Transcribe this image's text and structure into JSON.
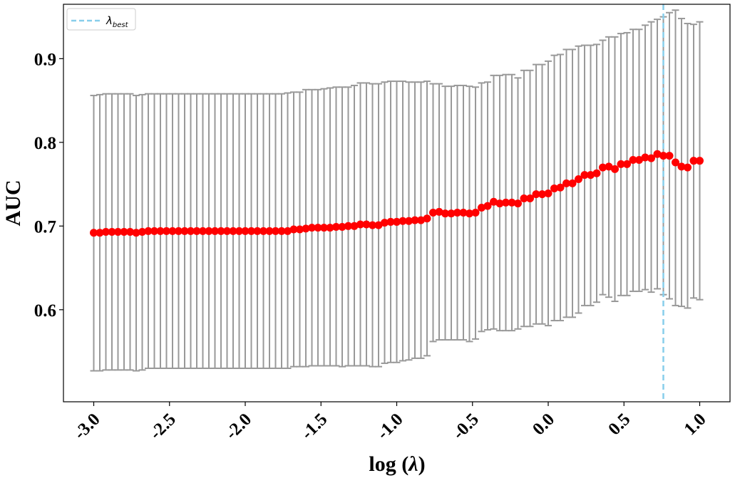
{
  "chart_data": {
    "type": "scatter",
    "xlabel_prefix": "log (",
    "xlabel_symbol": "λ",
    "xlabel_suffix": ")",
    "ylabel": "AUC",
    "xlim": [
      -3.2,
      1.2
    ],
    "ylim": [
      0.49,
      0.965
    ],
    "xticks": [
      -3.0,
      -2.5,
      -2.0,
      -1.5,
      -1.0,
      -0.5,
      0.0,
      0.5,
      1.0
    ],
    "xtick_labels": [
      "-3.0",
      "-2.5",
      "-2.0",
      "-1.5",
      "-1.0",
      "-0.5",
      "0.0",
      "0.5",
      "1.0"
    ],
    "yticks": [
      0.6,
      0.7,
      0.8,
      0.9
    ],
    "ytick_labels": [
      "0.6",
      "0.7",
      "0.8",
      "0.9"
    ],
    "grid": false,
    "legend_position": "top-left",
    "legend_symbol": "λ",
    "legend_subscript": "best",
    "best_lambda_log": 0.76,
    "colors": {
      "points": "#ff0000",
      "errorbars": "#999999",
      "best_line": "#87ceeb"
    },
    "series": [
      {
        "x": [
          -3.0,
          -2.96,
          -2.92,
          -2.88,
          -2.84,
          -2.8,
          -2.76,
          -2.72,
          -2.68,
          -2.64,
          -2.6,
          -2.56,
          -2.52,
          -2.48,
          -2.44,
          -2.4,
          -2.36,
          -2.32,
          -2.28,
          -2.24,
          -2.2,
          -2.16,
          -2.12,
          -2.08,
          -2.04,
          -2.0,
          -1.96,
          -1.92,
          -1.88,
          -1.84,
          -1.8,
          -1.76,
          -1.72,
          -1.68,
          -1.64,
          -1.6,
          -1.56,
          -1.52,
          -1.48,
          -1.44,
          -1.4,
          -1.36,
          -1.32,
          -1.28,
          -1.24,
          -1.2,
          -1.16,
          -1.12,
          -1.08,
          -1.04,
          -1.0,
          -0.96,
          -0.92,
          -0.88,
          -0.84,
          -0.8,
          -0.76,
          -0.72,
          -0.68,
          -0.64,
          -0.6,
          -0.56,
          -0.52,
          -0.48,
          -0.44,
          -0.4,
          -0.36,
          -0.32,
          -0.28,
          -0.24,
          -0.2,
          -0.16,
          -0.12,
          -0.08,
          -0.04,
          0.0,
          0.04,
          0.08,
          0.12,
          0.16,
          0.2,
          0.24,
          0.28,
          0.32,
          0.36,
          0.4,
          0.44,
          0.48,
          0.52,
          0.56,
          0.6,
          0.64,
          0.68,
          0.72,
          0.76,
          0.8,
          0.84,
          0.88,
          0.92,
          0.96,
          1.0
        ],
        "y": [
          0.692,
          0.692,
          0.693,
          0.693,
          0.693,
          0.693,
          0.693,
          0.692,
          0.693,
          0.694,
          0.694,
          0.694,
          0.694,
          0.694,
          0.694,
          0.694,
          0.694,
          0.694,
          0.694,
          0.694,
          0.694,
          0.694,
          0.694,
          0.694,
          0.694,
          0.694,
          0.694,
          0.694,
          0.694,
          0.694,
          0.694,
          0.694,
          0.694,
          0.696,
          0.696,
          0.697,
          0.698,
          0.698,
          0.698,
          0.698,
          0.699,
          0.699,
          0.7,
          0.7,
          0.702,
          0.702,
          0.701,
          0.701,
          0.704,
          0.705,
          0.705,
          0.706,
          0.706,
          0.707,
          0.707,
          0.709,
          0.716,
          0.717,
          0.715,
          0.715,
          0.716,
          0.716,
          0.715,
          0.716,
          0.722,
          0.724,
          0.729,
          0.727,
          0.728,
          0.728,
          0.727,
          0.733,
          0.733,
          0.738,
          0.738,
          0.739,
          0.745,
          0.746,
          0.751,
          0.751,
          0.756,
          0.761,
          0.761,
          0.763,
          0.77,
          0.771,
          0.768,
          0.774,
          0.774,
          0.779,
          0.779,
          0.782,
          0.781,
          0.786,
          0.784,
          0.784,
          0.776,
          0.771,
          0.77,
          0.778,
          0.778
        ],
        "yerr_upper": [
          0.856,
          0.857,
          0.858,
          0.858,
          0.858,
          0.858,
          0.858,
          0.856,
          0.857,
          0.858,
          0.858,
          0.858,
          0.858,
          0.858,
          0.858,
          0.858,
          0.858,
          0.858,
          0.858,
          0.858,
          0.858,
          0.858,
          0.858,
          0.858,
          0.858,
          0.858,
          0.858,
          0.858,
          0.858,
          0.858,
          0.858,
          0.858,
          0.859,
          0.86,
          0.86,
          0.863,
          0.863,
          0.863,
          0.864,
          0.865,
          0.866,
          0.866,
          0.866,
          0.868,
          0.871,
          0.871,
          0.87,
          0.87,
          0.872,
          0.873,
          0.873,
          0.873,
          0.872,
          0.872,
          0.872,
          0.873,
          0.87,
          0.87,
          0.867,
          0.867,
          0.868,
          0.868,
          0.867,
          0.866,
          0.871,
          0.872,
          0.88,
          0.88,
          0.881,
          0.881,
          0.877,
          0.886,
          0.886,
          0.893,
          0.893,
          0.897,
          0.904,
          0.905,
          0.911,
          0.911,
          0.915,
          0.916,
          0.916,
          0.917,
          0.922,
          0.926,
          0.926,
          0.93,
          0.931,
          0.935,
          0.935,
          0.94,
          0.944,
          0.947,
          0.95,
          0.955,
          0.958,
          0.948,
          0.942,
          0.941,
          0.944
        ],
        "yerr_lower": [
          0.527,
          0.527,
          0.528,
          0.528,
          0.528,
          0.528,
          0.528,
          0.527,
          0.528,
          0.53,
          0.53,
          0.53,
          0.53,
          0.53,
          0.53,
          0.53,
          0.53,
          0.53,
          0.53,
          0.53,
          0.53,
          0.53,
          0.53,
          0.53,
          0.53,
          0.53,
          0.53,
          0.53,
          0.53,
          0.53,
          0.53,
          0.53,
          0.53,
          0.532,
          0.532,
          0.532,
          0.533,
          0.533,
          0.533,
          0.533,
          0.533,
          0.532,
          0.533,
          0.533,
          0.533,
          0.533,
          0.532,
          0.532,
          0.536,
          0.537,
          0.537,
          0.539,
          0.54,
          0.542,
          0.542,
          0.545,
          0.562,
          0.564,
          0.564,
          0.564,
          0.564,
          0.564,
          0.562,
          0.565,
          0.574,
          0.576,
          0.577,
          0.575,
          0.575,
          0.575,
          0.577,
          0.58,
          0.58,
          0.583,
          0.583,
          0.581,
          0.587,
          0.587,
          0.591,
          0.591,
          0.596,
          0.605,
          0.605,
          0.609,
          0.618,
          0.615,
          0.61,
          0.617,
          0.617,
          0.622,
          0.622,
          0.624,
          0.621,
          0.625,
          0.618,
          0.613,
          0.605,
          0.604,
          0.602,
          0.614,
          0.612
        ]
      }
    ]
  }
}
